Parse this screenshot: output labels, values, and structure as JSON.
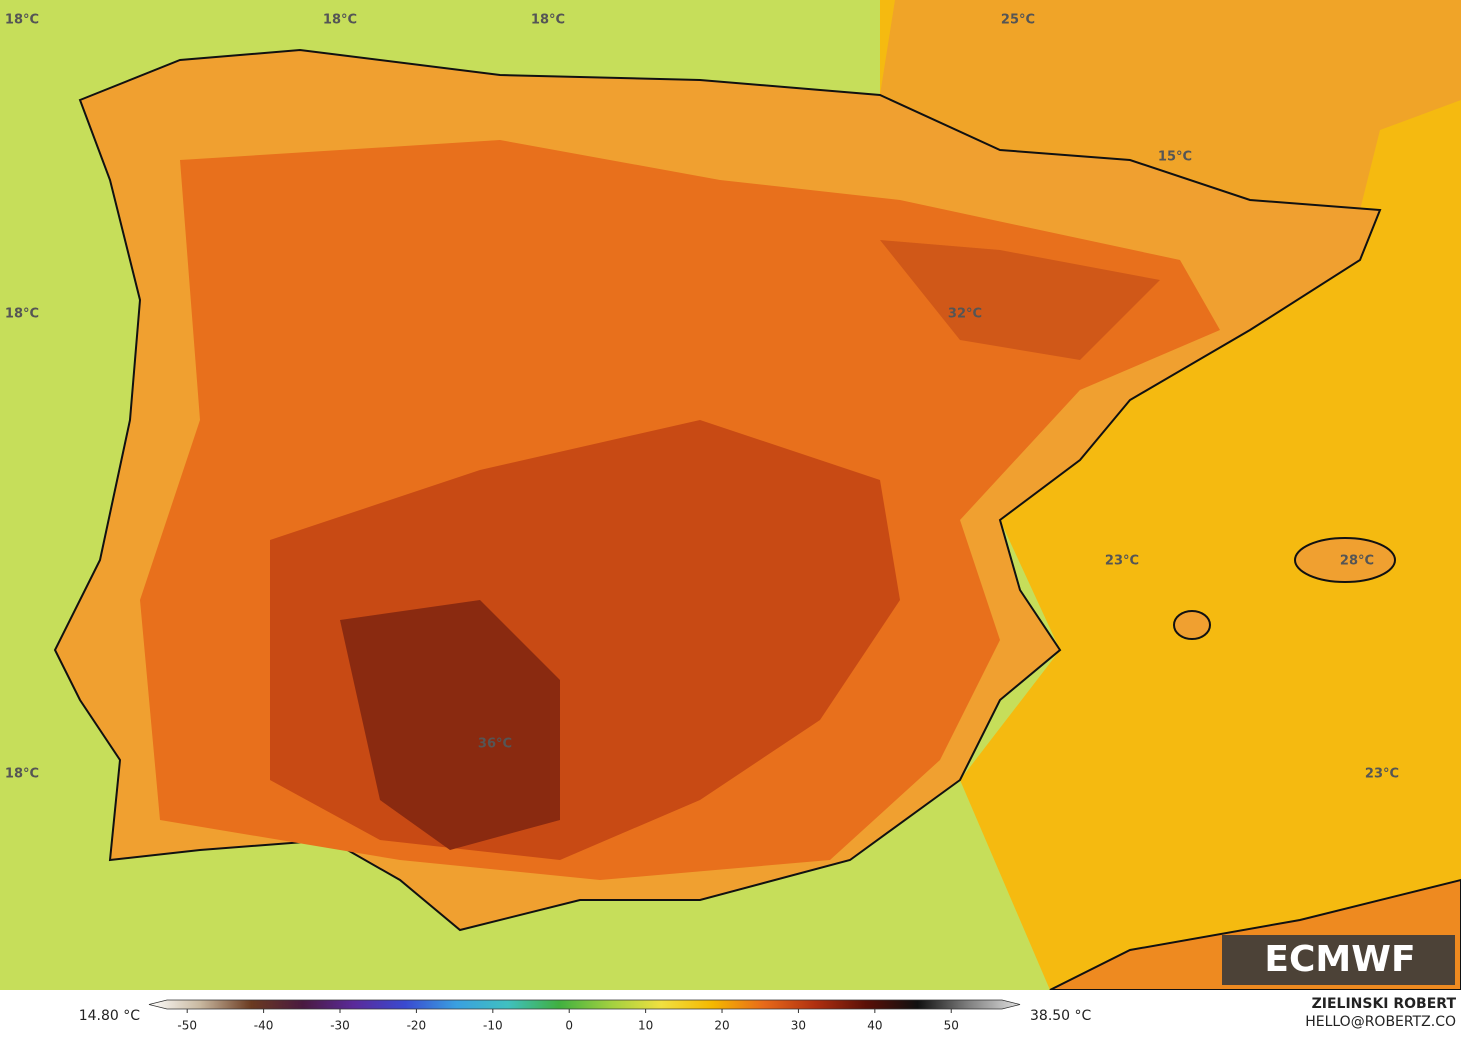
{
  "map": {
    "labels": [
      "18°C",
      "18°C",
      "18°C",
      "25°C",
      "15°C",
      "18°C",
      "32°C",
      "23°C",
      "28°C",
      "36°C",
      "18°C",
      "23°C"
    ],
    "logo": "ECMWF",
    "credit_name": "ZIELINSKI ROBERT",
    "credit_contact": "HELLO@ROBERTZ.CO"
  },
  "colorbar": {
    "min_label": "14.80 °C",
    "max_label": "38.50 °C",
    "lim": [
      -55,
      59
    ],
    "ticks": [
      -50,
      -40,
      -30,
      -20,
      -10,
      0,
      10,
      20,
      30,
      40,
      50
    ],
    "colors": [
      "#ffffff",
      "#c8b8a0",
      "#6a3a20",
      "#4a1a40",
      "#5a2a9a",
      "#3a4ad0",
      "#3aa0e0",
      "#40c0c0",
      "#40b040",
      "#a0d040",
      "#f0e040",
      "#f5b800",
      "#e86a1a",
      "#b03010",
      "#5a1008",
      "#101010",
      "#808080",
      "#e0e0e0"
    ]
  }
}
